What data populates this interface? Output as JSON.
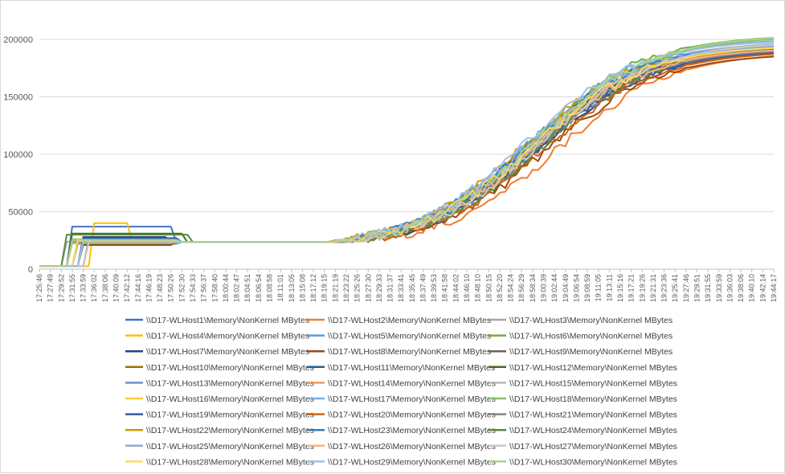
{
  "chart_data": {
    "type": "line",
    "title": "",
    "xlabel": "",
    "ylabel": "",
    "ylim": [
      0,
      200000
    ],
    "yticks": [
      "0",
      "50000",
      "100000",
      "150000",
      "200000"
    ],
    "grid": "horizontal",
    "legend": "bottom",
    "xticks": [
      "17:25:46",
      "17:27:49",
      "17:29:52",
      "17:31:55",
      "17:33:59",
      "17:36:02",
      "17:38:06",
      "17:40:09",
      "17:42:12",
      "17:44:16",
      "17:46:19",
      "17:48:23",
      "17:50:26",
      "17:52:30",
      "17:54:33",
      "17:56:37",
      "17:58:40",
      "18:00:44",
      "18:02:47",
      "18:04:51",
      "18:06:54",
      "18:08:58",
      "18:11:01",
      "18:13:05",
      "18:15:08",
      "18:17:12",
      "18:19:15",
      "18:21:19",
      "18:23:22",
      "18:25:26",
      "18:27:30",
      "18:29:33",
      "18:31:37",
      "18:33:41",
      "18:35:45",
      "18:37:49",
      "18:39:53",
      "18:41:58",
      "18:44:02",
      "18:46:10",
      "18:48:10",
      "18:50:15",
      "18:52:20",
      "18:54:24",
      "18:56:29",
      "18:58:34",
      "19:00:39",
      "19:02:44",
      "19:04:49",
      "19:06:54",
      "19:08:59",
      "19:11:05",
      "19:13:11",
      "19:15:16",
      "19:17:21",
      "19:19:26",
      "19:21:31",
      "19:23:36",
      "19:25:41",
      "19:27:46",
      "19:29:51",
      "19:31:55",
      "19:33:59",
      "19:36:03",
      "19:38:06",
      "19:40:10",
      "19:42:14",
      "19:44:17"
    ],
    "series": [
      {
        "name": "\\\\D17-WLHost1\\Memory\\NonKernel MBytes",
        "color": "#4472C4",
        "start": 3,
        "plateau": 37000,
        "plateau_end": 12.2,
        "ramp_start": 26.6,
        "ramp_mid": 45.6,
        "final": 196000,
        "jitter": 0
      },
      {
        "name": "\\\\D17-WLHost2\\Memory\\NonKernel MBytes",
        "color": "#ED7D31",
        "start": 3.8,
        "plateau": 25000,
        "plateau_end": 12.8,
        "ramp_start": 27.6,
        "ramp_mid": 47.2,
        "final": 189000,
        "jitter": 1
      },
      {
        "name": "\\\\D17-WLHost3\\Memory\\NonKernel MBytes",
        "color": "#A5A5A5",
        "start": 2.5,
        "plateau": 24000,
        "plateau_end": 12.4,
        "ramp_start": 26.6,
        "ramp_mid": 45.4,
        "final": 192000,
        "jitter": 2
      },
      {
        "name": "\\\\D17-WLHost4\\Memory\\NonKernel MBytes",
        "color": "#FFC000",
        "start": 4.8,
        "plateau": 40000,
        "plateau_end": 8.4,
        "ramp_start": 26.4,
        "ramp_mid": 45.2,
        "final": 194000,
        "jitter": 3
      },
      {
        "name": "\\\\D17-WLHost5\\Memory\\NonKernel MBytes",
        "color": "#5B9BD5",
        "start": 3.2,
        "plateau": 22000,
        "plateau_end": 12.6,
        "ramp_start": 26.4,
        "ramp_mid": 44.6,
        "final": 198000,
        "jitter": 4
      },
      {
        "name": "\\\\D17-WLHost6\\Memory\\NonKernel MBytes",
        "color": "#70AD47",
        "start": 3.0,
        "plateau": 26000,
        "plateau_end": 12.6,
        "ramp_start": 26.8,
        "ramp_mid": 45.0,
        "final": 204000,
        "jitter": 5
      },
      {
        "name": "\\\\D17-WLHost7\\Memory\\NonKernel MBytes",
        "color": "#264478",
        "start": 4.0,
        "plateau": 28000,
        "plateau_end": 12.0,
        "ramp_start": 26.6,
        "ramp_mid": 45.8,
        "final": 191000,
        "jitter": 6
      },
      {
        "name": "\\\\D17-WLHost8\\Memory\\NonKernel MBytes",
        "color": "#9E480E",
        "start": 3.6,
        "plateau": 21000,
        "plateau_end": 12.4,
        "ramp_start": 27.2,
        "ramp_mid": 46.2,
        "final": 188000,
        "jitter": 7
      },
      {
        "name": "\\\\D17-WLHost9\\Memory\\NonKernel MBytes",
        "color": "#636363",
        "start": 2.8,
        "plateau": 24500,
        "plateau_end": 12.2,
        "ramp_start": 26.8,
        "ramp_mid": 45.4,
        "final": 190000,
        "jitter": 8
      },
      {
        "name": "\\\\D17-WLHost10\\Memory\\NonKernel MBytes",
        "color": "#997300",
        "start": 3.4,
        "plateau": 23000,
        "plateau_end": 12.4,
        "ramp_start": 26.2,
        "ramp_mid": 44.4,
        "final": 193000,
        "jitter": 9
      },
      {
        "name": "\\\\D17-WLHost11\\Memory\\NonKernel MBytes",
        "color": "#255E91",
        "start": 4.2,
        "plateau": 25500,
        "plateau_end": 12.6,
        "ramp_start": 26.6,
        "ramp_mid": 45.0,
        "final": 197000,
        "jitter": 10
      },
      {
        "name": "\\\\D17-WLHost12\\Memory\\NonKernel MBytes",
        "color": "#43682B",
        "start": 3.0,
        "plateau": 31000,
        "plateau_end": 13.4,
        "ramp_start": 26.8,
        "ramp_mid": 45.6,
        "final": 195000,
        "jitter": 11
      },
      {
        "name": "\\\\D17-WLHost13\\Memory\\NonKernel MBytes",
        "color": "#698ED0",
        "start": 3.8,
        "plateau": 24000,
        "plateau_end": 12.2,
        "ramp_start": 26.4,
        "ramp_mid": 45.2,
        "final": 192000,
        "jitter": 12
      },
      {
        "name": "\\\\D17-WLHost14\\Memory\\NonKernel MBytes",
        "color": "#F1975A",
        "start": 2.6,
        "plateau": 25000,
        "plateau_end": 12.8,
        "ramp_start": 26.6,
        "ramp_mid": 45.4,
        "final": 194000,
        "jitter": 13
      },
      {
        "name": "\\\\D17-WLHost15\\Memory\\NonKernel MBytes",
        "color": "#B7B7B7",
        "start": 4.4,
        "plateau": 23500,
        "plateau_end": 12.4,
        "ramp_start": 26.8,
        "ramp_mid": 45.6,
        "final": 199000,
        "jitter": 14
      },
      {
        "name": "\\\\D17-WLHost16\\Memory\\NonKernel MBytes",
        "color": "#FFCD33",
        "start": 3.2,
        "plateau": 26000,
        "plateau_end": 12.0,
        "ramp_start": 26.4,
        "ramp_mid": 45.0,
        "final": 196000,
        "jitter": 15
      },
      {
        "name": "\\\\D17-WLHost17\\Memory\\NonKernel MBytes",
        "color": "#7CAFDD",
        "start": 3.6,
        "plateau": 24000,
        "plateau_end": 12.6,
        "ramp_start": 26.2,
        "ramp_mid": 44.8,
        "final": 201000,
        "jitter": 16
      },
      {
        "name": "\\\\D17-WLHost18\\Memory\\NonKernel MBytes",
        "color": "#8CC168",
        "start": 2.8,
        "plateau": 22500,
        "plateau_end": 12.2,
        "ramp_start": 26.8,
        "ramp_mid": 45.4,
        "final": 203000,
        "jitter": 17
      },
      {
        "name": "\\\\D17-WLHost19\\Memory\\NonKernel MBytes",
        "color": "#335AA1",
        "start": 4.0,
        "plateau": 27000,
        "plateau_end": 12.8,
        "ramp_start": 26.6,
        "ramp_mid": 45.2,
        "final": 191000,
        "jitter": 18
      },
      {
        "name": "\\\\D17-WLHost20\\Memory\\NonKernel MBytes",
        "color": "#D26012",
        "start": 3.4,
        "plateau": 24000,
        "plateau_end": 12.4,
        "ramp_start": 27.0,
        "ramp_mid": 46.0,
        "final": 190000,
        "jitter": 19
      },
      {
        "name": "\\\\D17-WLHost21\\Memory\\NonKernel MBytes",
        "color": "#848484",
        "start": 3.0,
        "plateau": 25000,
        "plateau_end": 12.6,
        "ramp_start": 26.6,
        "ramp_mid": 45.4,
        "final": 192000,
        "jitter": 20
      },
      {
        "name": "\\\\D17-WLHost22\\Memory\\NonKernel MBytes",
        "color": "#CC9A00",
        "start": 4.2,
        "plateau": 23000,
        "plateau_end": 12.2,
        "ramp_start": 26.0,
        "ramp_mid": 44.2,
        "final": 195000,
        "jitter": 21
      },
      {
        "name": "\\\\D17-WLHost23\\Memory\\NonKernel MBytes",
        "color": "#327DC2",
        "start": 3.6,
        "plateau": 26000,
        "plateau_end": 12.4,
        "ramp_start": 26.4,
        "ramp_mid": 44.8,
        "final": 197000,
        "jitter": 22
      },
      {
        "name": "\\\\D17-WLHost24\\Memory\\NonKernel MBytes",
        "color": "#5A8A39",
        "start": 2.4,
        "plateau": 30000,
        "plateau_end": 13.6,
        "ramp_start": 26.8,
        "ramp_mid": 45.8,
        "final": 194000,
        "jitter": 23
      },
      {
        "name": "\\\\D17-WLHost25\\Memory\\NonKernel MBytes",
        "color": "#8FAADC",
        "start": 3.8,
        "plateau": 24000,
        "plateau_end": 12.6,
        "ramp_start": 26.2,
        "ramp_mid": 44.6,
        "final": 196000,
        "jitter": 24
      },
      {
        "name": "\\\\D17-WLHost26\\Memory\\NonKernel MBytes",
        "color": "#F4B183",
        "start": 3.0,
        "plateau": 25000,
        "plateau_end": 12.4,
        "ramp_start": 26.6,
        "ramp_mid": 45.2,
        "final": 193000,
        "jitter": 25
      },
      {
        "name": "\\\\D17-WLHost27\\Memory\\NonKernel MBytes",
        "color": "#C9C9C9",
        "start": 4.4,
        "plateau": 23500,
        "plateau_end": 12.2,
        "ramp_start": 26.8,
        "ramp_mid": 45.6,
        "final": 198000,
        "jitter": 26
      },
      {
        "name": "\\\\D17-WLHost28\\Memory\\NonKernel MBytes",
        "color": "#FFD966",
        "start": 3.2,
        "plateau": 24500,
        "plateau_end": 12.8,
        "ramp_start": 26.4,
        "ramp_mid": 45.0,
        "final": 195000,
        "jitter": 27
      },
      {
        "name": "\\\\D17-WLHost29\\Memory\\NonKernel MBytes",
        "color": "#9DC3E6",
        "start": 3.6,
        "plateau": 24000,
        "plateau_end": 12.4,
        "ramp_start": 26.0,
        "ramp_mid": 44.4,
        "final": 200000,
        "jitter": 28
      },
      {
        "name": "\\\\D17-WLHost30\\Memory\\NonKernel MBytes",
        "color": "#A9D18E",
        "start": 2.8,
        "plateau": 25500,
        "plateau_end": 12.6,
        "ramp_start": 26.6,
        "ramp_mid": 45.4,
        "final": 204000,
        "jitter": 29
      }
    ]
  }
}
